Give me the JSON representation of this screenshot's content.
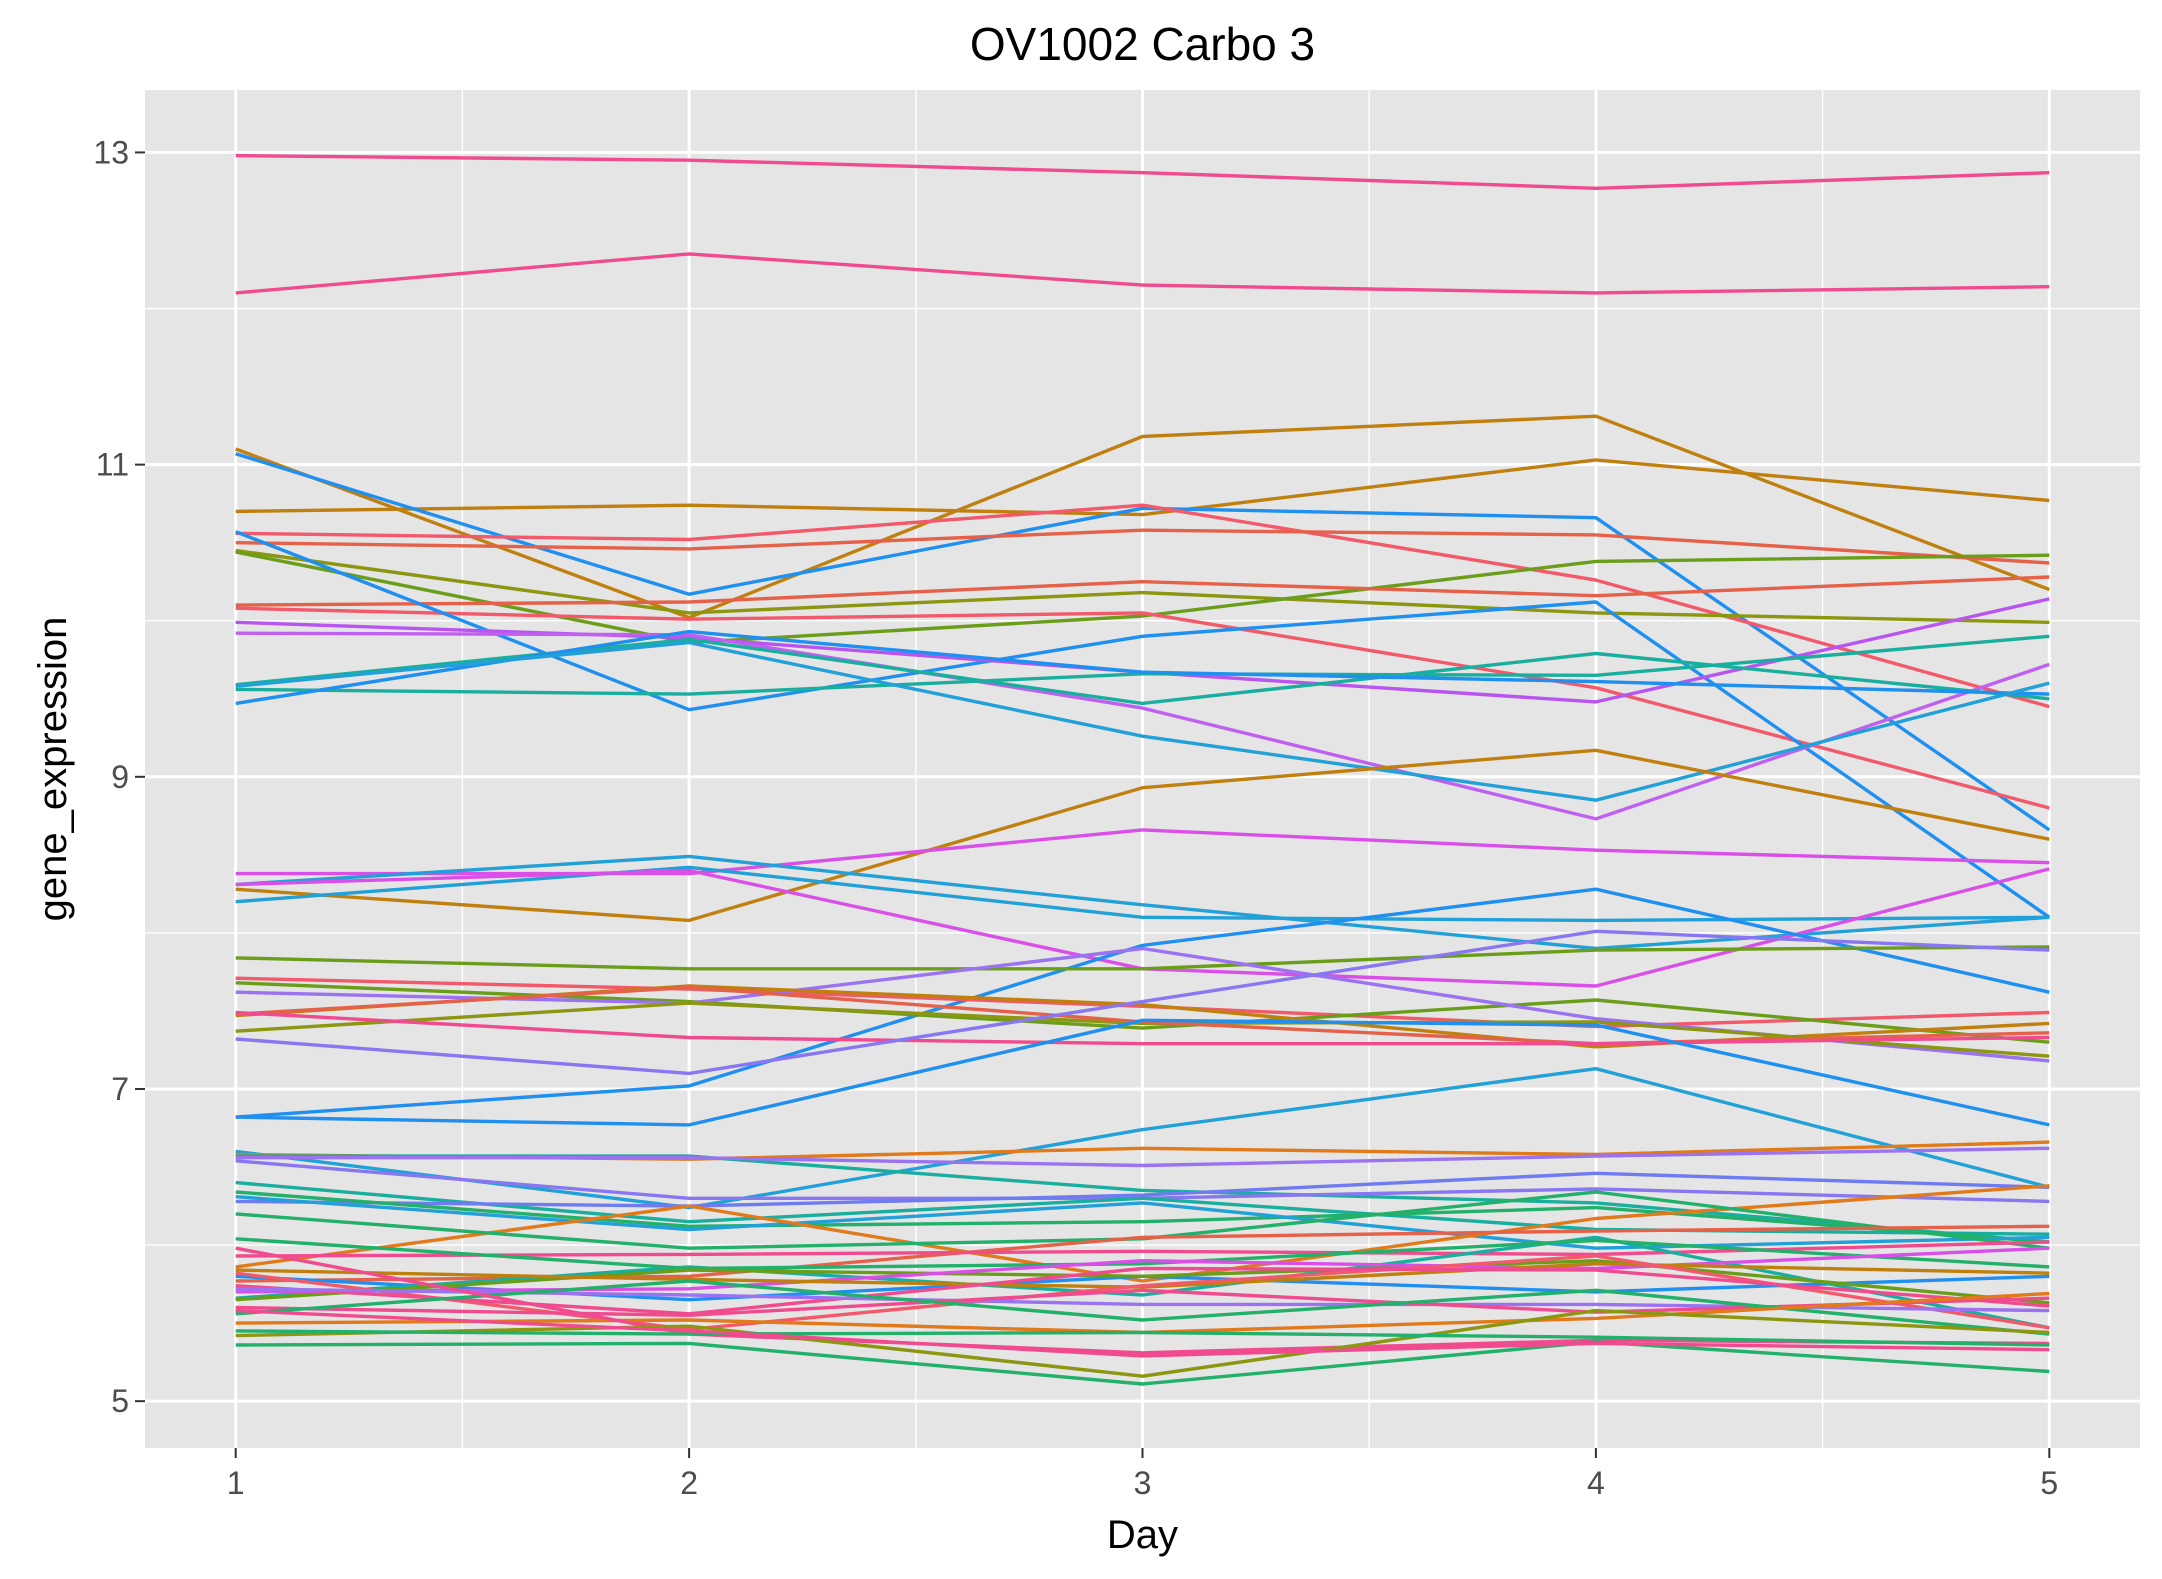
{
  "chart_data": {
    "type": "line",
    "title": "OV1002 Carbo 3",
    "xlabel": "Day",
    "ylabel": "gene_expression",
    "x": [
      1,
      2,
      3,
      4,
      5
    ],
    "xlim": [
      0.8,
      5.2
    ],
    "ylim": [
      4.7,
      13.4
    ],
    "xticks": [
      1,
      2,
      3,
      4,
      5
    ],
    "yticks": [
      5,
      7,
      9,
      11,
      13
    ],
    "grid": true,
    "legend": "none",
    "panel_background": "#e5e5e5",
    "series": [
      {
        "color": "#f04b8f",
        "values": [
          12.98,
          12.95,
          12.87,
          12.77,
          12.87
        ]
      },
      {
        "color": "#f04b8f",
        "values": [
          12.1,
          12.35,
          12.15,
          12.1,
          12.14
        ]
      },
      {
        "color": "#c0800f",
        "values": [
          11.1,
          10.02,
          11.18,
          11.31,
          10.2
        ]
      },
      {
        "color": "#c0800f",
        "values": [
          10.7,
          10.74,
          10.68,
          11.03,
          10.77
        ]
      },
      {
        "color": "#1f8ff0",
        "values": [
          11.07,
          10.17,
          10.72,
          10.66,
          8.66
        ]
      },
      {
        "color": "#f2596a",
        "values": [
          10.56,
          10.52,
          10.74,
          10.26,
          9.45
        ]
      },
      {
        "color": "#e5614a",
        "values": [
          10.5,
          10.46,
          10.58,
          10.55,
          10.37
        ]
      },
      {
        "color": "#8c9610",
        "values": [
          10.45,
          10.05,
          10.18,
          10.05,
          9.99
        ]
      },
      {
        "color": "#6a9e1a",
        "values": [
          10.44,
          9.86,
          10.03,
          10.38,
          10.42
        ]
      },
      {
        "color": "#e5614a",
        "values": [
          10.1,
          10.12,
          10.25,
          10.16,
          10.28
        ]
      },
      {
        "color": "#f2596a",
        "values": [
          10.08,
          10.01,
          10.05,
          9.57,
          8.8
        ]
      },
      {
        "color": "#1f8ff0",
        "values": [
          10.57,
          9.43,
          9.9,
          10.12,
          8.1
        ]
      },
      {
        "color": "#b855f0",
        "values": [
          9.99,
          9.89,
          9.67,
          9.48,
          10.14
        ]
      },
      {
        "color": "#c060f0",
        "values": [
          9.92,
          9.91,
          9.44,
          8.73,
          9.72
        ]
      },
      {
        "color": "#1aae9e",
        "values": [
          9.59,
          9.88,
          9.47,
          9.79,
          9.5
        ]
      },
      {
        "color": "#1aae9e",
        "values": [
          9.56,
          9.53,
          9.66,
          9.65,
          9.9
        ]
      },
      {
        "color": "#1f8ff0",
        "values": [
          9.47,
          9.93,
          9.67,
          9.61,
          9.53
        ]
      },
      {
        "color": "#22a0d8",
        "values": [
          9.58,
          9.86,
          9.26,
          8.85,
          9.6
        ]
      },
      {
        "color": "#c0800f",
        "values": [
          8.28,
          8.08,
          8.93,
          9.17,
          8.6
        ]
      },
      {
        "color": "#d94fe8",
        "values": [
          8.38,
          8.38,
          8.66,
          8.53,
          8.45
        ]
      },
      {
        "color": "#22a0d8",
        "values": [
          8.31,
          8.49,
          8.18,
          7.9,
          8.1
        ]
      },
      {
        "color": "#22a0d8",
        "values": [
          8.2,
          8.42,
          8.1,
          8.08,
          8.1
        ]
      },
      {
        "color": "#d94fe8",
        "values": [
          8.31,
          8.4,
          7.77,
          7.66,
          8.41
        ]
      },
      {
        "color": "#1f8ff0",
        "values": [
          6.82,
          7.02,
          7.92,
          8.28,
          7.62
        ]
      },
      {
        "color": "#6a9e1a",
        "values": [
          7.84,
          7.77,
          7.77,
          7.89,
          7.91
        ]
      },
      {
        "color": "#f2596a",
        "values": [
          7.71,
          7.64,
          7.53,
          7.4,
          7.49
        ]
      },
      {
        "color": "#6a9e1a",
        "values": [
          7.68,
          7.56,
          7.39,
          7.57,
          7.3
        ]
      },
      {
        "color": "#9b72f0",
        "values": [
          7.62,
          7.55,
          7.9,
          7.45,
          7.18
        ]
      },
      {
        "color": "#c0800f",
        "values": [
          7.47,
          7.66,
          7.54,
          7.27,
          7.42
        ]
      },
      {
        "color": "#8c9610",
        "values": [
          7.37,
          7.55,
          7.42,
          7.43,
          7.21
        ]
      },
      {
        "color": "#e5614a",
        "values": [
          7.48,
          7.65,
          7.43,
          7.29,
          7.36
        ]
      },
      {
        "color": "#f04b8f",
        "values": [
          7.49,
          7.33,
          7.29,
          7.29,
          7.33
        ]
      },
      {
        "color": "#8877f0",
        "values": [
          7.32,
          7.1,
          7.56,
          8.01,
          7.89
        ]
      },
      {
        "color": "#1f8ff0",
        "values": [
          6.82,
          6.77,
          7.44,
          7.41,
          6.77
        ]
      },
      {
        "color": "#22a0d8",
        "values": [
          6.6,
          6.24,
          6.74,
          7.13,
          6.37
        ]
      },
      {
        "color": "#e07a1a",
        "values": [
          6.58,
          6.55,
          6.62,
          6.58,
          6.66
        ]
      },
      {
        "color": "#1aae9e",
        "values": [
          6.57,
          6.57,
          6.35,
          6.27,
          6.02
        ]
      },
      {
        "color": "#9b72f0",
        "values": [
          6.56,
          6.56,
          6.51,
          6.57,
          6.62
        ]
      },
      {
        "color": "#8877f0",
        "values": [
          6.54,
          6.3,
          6.3,
          6.36,
          6.28
        ]
      },
      {
        "color": "#1aae9e",
        "values": [
          6.4,
          6.15,
          6.3,
          6.1,
          6.07
        ]
      },
      {
        "color": "#6f7bf0",
        "values": [
          6.28,
          6.25,
          6.32,
          6.46,
          6.37
        ]
      },
      {
        "color": "#22b06a",
        "values": [
          6.34,
          6.12,
          6.15,
          6.24,
          6.02
        ]
      },
      {
        "color": "#22a0d8",
        "values": [
          6.31,
          6.1,
          6.27,
          5.98,
          6.05
        ]
      },
      {
        "color": "#e07a1a",
        "values": [
          5.86,
          6.25,
          5.77,
          6.17,
          6.38
        ]
      },
      {
        "color": "#22b06a",
        "values": [
          6.2,
          5.98,
          6.04,
          6.34,
          5.98
        ]
      },
      {
        "color": "#e5614a",
        "values": [
          5.77,
          5.8,
          6.05,
          6.09,
          6.12
        ]
      },
      {
        "color": "#1f8ff0",
        "values": [
          5.8,
          5.65,
          5.8,
          5.7,
          5.8
        ]
      },
      {
        "color": "#f04b8f",
        "values": [
          5.93,
          5.94,
          5.96,
          5.94,
          6.02
        ]
      },
      {
        "color": "#1aae9e",
        "values": [
          5.66,
          5.86,
          5.68,
          6.05,
          5.47
        ]
      },
      {
        "color": "#22b06a",
        "values": [
          6.04,
          5.85,
          5.88,
          6.03,
          5.86
        ]
      },
      {
        "color": "#6a9e1a",
        "values": [
          5.65,
          5.84,
          5.8,
          5.9,
          5.63
        ]
      },
      {
        "color": "#d94fe8",
        "values": [
          5.7,
          5.72,
          5.9,
          5.85,
          5.98
        ]
      },
      {
        "color": "#c0800f",
        "values": [
          5.84,
          5.78,
          5.73,
          5.88,
          5.82
        ]
      },
      {
        "color": "#f2596a",
        "values": [
          5.82,
          5.46,
          5.74,
          5.93,
          5.47
        ]
      },
      {
        "color": "#f04b8f",
        "values": [
          5.74,
          5.56,
          5.85,
          5.84,
          5.61
        ]
      },
      {
        "color": "#9b72f0",
        "values": [
          5.72,
          5.68,
          5.62,
          5.62,
          5.58
        ]
      },
      {
        "color": "#f04b8f",
        "values": [
          5.6,
          5.55,
          5.71,
          5.57,
          5.66
        ]
      },
      {
        "color": "#22b06a",
        "values": [
          5.56,
          5.77,
          5.52,
          5.71,
          5.43
        ]
      },
      {
        "color": "#e07a1a",
        "values": [
          5.5,
          5.52,
          5.44,
          5.53,
          5.69
        ]
      },
      {
        "color": "#f04b8f",
        "values": [
          5.98,
          5.43,
          5.31,
          5.39,
          5.37
        ]
      },
      {
        "color": "#8c9610",
        "values": [
          5.42,
          5.48,
          5.16,
          5.58,
          5.44
        ]
      },
      {
        "color": "#22b06a",
        "values": [
          5.45,
          5.43,
          5.44,
          5.41,
          5.36
        ]
      },
      {
        "color": "#22b06a",
        "values": [
          5.36,
          5.37,
          5.11,
          5.38,
          5.19
        ]
      },
      {
        "color": "#f04b8f",
        "values": [
          5.58,
          5.45,
          5.29,
          5.37,
          5.33
        ]
      }
    ]
  }
}
